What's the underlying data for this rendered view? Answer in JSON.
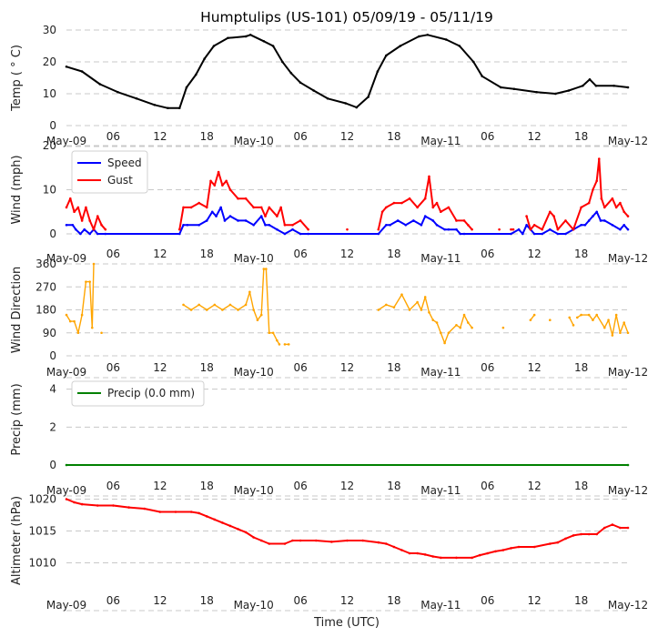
{
  "title": "Humptulips (US-101) 05/09/19 - 05/11/19",
  "xlabel": "Time (UTC)",
  "x_tick_hours": [
    0,
    6,
    12,
    18,
    24,
    30,
    36,
    42,
    48,
    54,
    60,
    66,
    72
  ],
  "x_tick_labels": [
    "May-09",
    "06",
    "12",
    "18",
    "May-10",
    "06",
    "12",
    "18",
    "May-11",
    "06",
    "12",
    "18",
    "May-12"
  ],
  "chart_data": [
    {
      "type": "line",
      "id": "temp",
      "ylabel": "Temp ($^\\circ$C)",
      "ylabel_display": "Temp ( ° C)",
      "ylim": [
        0,
        30
      ],
      "yticks": [
        0,
        10,
        20,
        30
      ],
      "grid": true,
      "x_unit": "hours since 2019-05-09 00:00 UTC",
      "series": [
        {
          "name": "Temp",
          "color": "#000000",
          "x": [
            0,
            2,
            4.3,
            6.6,
            9,
            11.3,
            13,
            14.5,
            15.4,
            16.6,
            17.7,
            18.9,
            20.7,
            23,
            23.6,
            25.3,
            26.5,
            27.7,
            28.8,
            30,
            31.7,
            33.5,
            35.8,
            37.2,
            38.7,
            39.9,
            41,
            42.8,
            45.2,
            46.3,
            48.7,
            50.4,
            52.2,
            53.3,
            55.7,
            57.4,
            60.3,
            62.7,
            64.4,
            66.2,
            67.1,
            67.9,
            70.2,
            72
          ],
          "values": [
            18.5,
            17,
            13,
            10.5,
            8.5,
            6.5,
            5.5,
            5.5,
            12,
            16,
            21,
            25,
            27.5,
            28,
            28.5,
            26.5,
            25,
            20,
            16.5,
            13.5,
            11,
            8.5,
            7,
            5.7,
            9,
            17,
            22,
            25,
            28,
            28.5,
            27,
            25,
            20,
            15.5,
            12,
            11.5,
            10.5,
            10,
            11,
            12.5,
            14.5,
            12.5,
            12.5,
            12
          ]
        }
      ]
    },
    {
      "type": "line",
      "id": "wind",
      "ylabel": "Wind (mph)",
      "ylim": [
        0,
        20
      ],
      "yticks": [
        0,
        10,
        20
      ],
      "grid": true,
      "legend": {
        "position": "top-left",
        "entries": [
          "Speed",
          "Gust"
        ]
      },
      "series": [
        {
          "name": "Speed",
          "color": "#0000ff",
          "x": [
            0,
            0.8,
            1.2,
            1.8,
            2.3,
            3,
            3.5,
            4,
            5,
            14.5,
            15,
            15.5,
            17,
            18,
            18.7,
            19.2,
            19.8,
            20.3,
            21,
            22,
            23,
            24,
            25,
            25.5,
            26,
            27,
            28,
            29,
            30,
            31,
            40,
            41,
            41.5,
            42.5,
            43.5,
            44.5,
            45.5,
            46,
            47,
            47.5,
            48.5,
            49,
            50,
            50.5,
            51,
            57,
            58,
            58.5,
            59,
            59.5,
            60,
            61,
            62,
            63,
            64,
            65,
            66,
            66.5,
            67,
            67.5,
            68,
            68.5,
            69,
            70,
            71,
            71.5,
            72
          ],
          "values": [
            2,
            2,
            1,
            0,
            1,
            0,
            1,
            0,
            0,
            0,
            2,
            2,
            2,
            3,
            5,
            4,
            6,
            3,
            4,
            3,
            3,
            2,
            4,
            2,
            2,
            1,
            0,
            1,
            0,
            0,
            0,
            2,
            2,
            3,
            2,
            3,
            2,
            4,
            3,
            2,
            1,
            1,
            1,
            0,
            0,
            0,
            1,
            0,
            2,
            1,
            0,
            0,
            1,
            0,
            0,
            1,
            2,
            2,
            3,
            4,
            5,
            3,
            3,
            2,
            1,
            2,
            1
          ]
        },
        {
          "name": "Gust",
          "color": "#ff0000",
          "segments": [
            {
              "x": [
                0,
                0.5,
                1,
                1.5,
                2,
                2.5,
                3,
                3.5,
                4,
                4.5,
                5
              ],
              "values": [
                6,
                8,
                5,
                6,
                3,
                6,
                3,
                1,
                4,
                2,
                1
              ]
            },
            {
              "x": [
                14.5,
                15,
                16,
                17,
                18,
                18.5,
                19,
                19.5,
                20,
                20.5,
                21,
                22,
                23,
                24,
                25,
                25.5,
                26,
                27,
                27.5,
                28,
                29,
                30,
                31
              ],
              "values": [
                1,
                6,
                6,
                7,
                6,
                12,
                11,
                14,
                11,
                12,
                10,
                8,
                8,
                6,
                6,
                4,
                6,
                4,
                6,
                2,
                2,
                3,
                1
              ]
            },
            {
              "x": [
                36
              ],
              "values": [
                1
              ]
            },
            {
              "x": [
                40,
                40.5,
                41,
                42,
                43,
                44,
                45,
                46,
                46.5,
                47,
                47.5,
                48,
                49,
                50,
                51,
                51.5,
                52
              ],
              "values": [
                1,
                5,
                6,
                7,
                7,
                8,
                6,
                8,
                13,
                6,
                7,
                5,
                6,
                3,
                3,
                2,
                1
              ]
            },
            {
              "x": [
                55.5
              ],
              "values": [
                1
              ]
            },
            {
              "x": [
                57,
                57.3
              ],
              "values": [
                1,
                1
              ]
            },
            {
              "x": [
                59,
                59.5,
                60,
                61,
                62,
                62.5,
                63,
                64,
                65,
                66,
                67,
                67.5,
                68,
                68.3,
                68.6,
                69,
                70,
                70.5,
                71,
                71.5,
                72
              ],
              "values": [
                4,
                1,
                2,
                1,
                5,
                4,
                1,
                3,
                1,
                6,
                7,
                10,
                12,
                17,
                8,
                6,
                8,
                6,
                7,
                5,
                4
              ]
            }
          ]
        }
      ]
    },
    {
      "type": "scatter-line",
      "id": "wind_direction",
      "ylabel": "Wind Direction",
      "ylim": [
        0,
        360
      ],
      "yticks": [
        0,
        90,
        180,
        270,
        360
      ],
      "grid": true,
      "series": [
        {
          "name": "Direction",
          "color": "#ffa500",
          "segments": [
            {
              "x": [
                0,
                0.5,
                1,
                1.5,
                2,
                2.5,
                3,
                3.3,
                3.5
              ],
              "values": [
                160,
                135,
                135,
                90,
                160,
                290,
                290,
                110,
                360
              ]
            },
            {
              "x": [
                4.5
              ],
              "values": [
                90
              ]
            },
            {
              "x": [
                15,
                16,
                17,
                18,
                19,
                20,
                21,
                22,
                23,
                23.5,
                24,
                24.5,
                25,
                25.3,
                25.6,
                26,
                26.5,
                27,
                27.3
              ],
              "values": [
                200,
                180,
                200,
                180,
                200,
                180,
                200,
                180,
                200,
                250,
                180,
                140,
                160,
                340,
                340,
                90,
                90,
                60,
                45
              ]
            },
            {
              "x": [
                28,
                28.5
              ],
              "values": [
                45,
                45
              ]
            },
            {
              "x": [
                40,
                41,
                42,
                43,
                44,
                45,
                45.5,
                46,
                46.5,
                47,
                47.5,
                48,
                48.5,
                49,
                50,
                50.5,
                51,
                51.5,
                52
              ],
              "values": [
                180,
                200,
                190,
                240,
                180,
                210,
                180,
                230,
                170,
                140,
                130,
                90,
                50,
                90,
                120,
                110,
                160,
                130,
                110
              ]
            },
            {
              "x": [
                56
              ],
              "values": [
                110
              ]
            },
            {
              "x": [
                59.5,
                60
              ],
              "values": [
                140,
                160
              ]
            },
            {
              "x": [
                62
              ],
              "values": [
                140
              ]
            },
            {
              "x": [
                64.5,
                65
              ],
              "values": [
                150,
                120
              ]
            },
            {
              "x": [
                65.5,
                66,
                67,
                67.5,
                68,
                69,
                69.5,
                70,
                70.5,
                71,
                71.5,
                72
              ],
              "values": [
                150,
                160,
                160,
                140,
                160,
                110,
                140,
                80,
                160,
                90,
                130,
                90
              ]
            }
          ]
        }
      ]
    },
    {
      "type": "line",
      "id": "precip",
      "ylabel": "Precip (mm)",
      "ylim": [
        0,
        4.8
      ],
      "yticks": [
        0,
        2,
        4
      ],
      "grid": true,
      "legend": {
        "position": "top-left",
        "entries": [
          "Precip (0.0 mm)"
        ]
      },
      "series": [
        {
          "name": "Precip (0.0 mm)",
          "color": "#008000",
          "x": [
            0,
            72
          ],
          "values": [
            0,
            0
          ]
        }
      ]
    },
    {
      "type": "line",
      "id": "altimeter",
      "ylabel": "Altimeter (hPa)",
      "ylim": [
        1006.5,
        1020.5
      ],
      "yticks": [
        1010,
        1015,
        1020
      ],
      "grid": true,
      "series": [
        {
          "name": "Altimeter",
          "color": "#ff0000",
          "x": [
            0,
            1,
            2,
            4,
            6,
            8,
            10,
            12,
            14,
            16,
            17,
            18,
            19,
            20,
            21,
            22,
            23,
            24,
            25,
            26,
            28,
            29,
            30,
            32,
            34,
            36,
            38,
            40,
            41,
            42,
            43,
            44,
            45,
            46,
            47,
            48,
            50,
            52,
            53,
            54,
            55,
            56,
            57,
            58,
            60,
            62,
            63,
            64,
            65,
            66,
            67,
            68,
            69,
            70,
            71,
            72
          ],
          "values": [
            1020,
            1019.5,
            1019.2,
            1019,
            1019,
            1018.7,
            1018.5,
            1018,
            1018,
            1018,
            1017.8,
            1017.3,
            1016.8,
            1016.3,
            1015.8,
            1015.3,
            1014.8,
            1014,
            1013.5,
            1013,
            1013,
            1013.5,
            1013.5,
            1013.5,
            1013.3,
            1013.5,
            1013.5,
            1013.2,
            1013,
            1012.5,
            1012,
            1011.5,
            1011.5,
            1011.3,
            1011,
            1010.8,
            1010.8,
            1010.8,
            1011.2,
            1011.5,
            1011.8,
            1012,
            1012.3,
            1012.5,
            1012.5,
            1013,
            1013.2,
            1013.8,
            1014.3,
            1014.5,
            1014.5,
            1014.5,
            1015.5,
            1016,
            1015.5,
            1015.5
          ]
        }
      ]
    }
  ]
}
